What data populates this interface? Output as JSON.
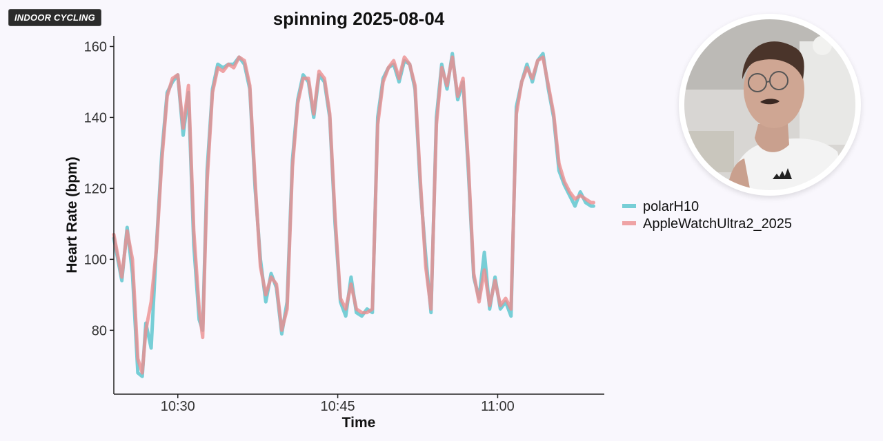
{
  "overlay": {
    "badge_label": "INDOOR CYCLING"
  },
  "colors": {
    "background": "#f9f7fd",
    "polar": "#56c3cc",
    "apple": "#ec8d8f",
    "overlap": "#7a8686",
    "axis": "#222222"
  },
  "chart_data": {
    "type": "line",
    "title": "spinning 2025-08-04",
    "xlabel": "Time",
    "ylabel": "Heart Rate (bpm)",
    "xlim": [
      "10:24",
      "11:10"
    ],
    "ylim": [
      62,
      163
    ],
    "x_ticks": [
      "10:30",
      "10:45",
      "11:00"
    ],
    "y_ticks": [
      80,
      100,
      120,
      140,
      160
    ],
    "grid": false,
    "legend_position": "right",
    "series": [
      {
        "name": "polarH10",
        "x": [
          "10:24:00",
          "10:24:45",
          "10:25:15",
          "10:25:45",
          "10:26:15",
          "10:26:40",
          "10:27:00",
          "10:27:30",
          "10:28:00",
          "10:28:30",
          "10:29:00",
          "10:29:30",
          "10:30:00",
          "10:30:30",
          "10:31:00",
          "10:31:30",
          "10:32:00",
          "10:32:20",
          "10:32:45",
          "10:33:15",
          "10:33:45",
          "10:34:15",
          "10:34:45",
          "10:35:15",
          "10:35:45",
          "10:36:15",
          "10:36:45",
          "10:37:15",
          "10:37:45",
          "10:38:15",
          "10:38:45",
          "10:39:15",
          "10:39:45",
          "10:40:15",
          "10:40:45",
          "10:41:15",
          "10:41:45",
          "10:42:15",
          "10:42:45",
          "10:43:15",
          "10:43:45",
          "10:44:15",
          "10:44:45",
          "10:45:15",
          "10:45:45",
          "10:46:15",
          "10:46:45",
          "10:47:15",
          "10:47:45",
          "10:48:15",
          "10:48:45",
          "10:49:15",
          "10:49:45",
          "10:50:15",
          "10:50:45",
          "10:51:15",
          "10:51:45",
          "10:52:15",
          "10:52:45",
          "10:53:15",
          "10:53:45",
          "10:54:15",
          "10:54:45",
          "10:55:15",
          "10:55:45",
          "10:56:15",
          "10:56:45",
          "10:57:15",
          "10:57:45",
          "10:58:15",
          "10:58:45",
          "10:59:15",
          "10:59:45",
          "11:00:15",
          "11:00:45",
          "11:01:15",
          "11:01:45",
          "11:02:15",
          "11:02:45",
          "11:03:15",
          "11:03:45",
          "11:04:15",
          "11:04:45",
          "11:05:15",
          "11:05:45",
          "11:06:15",
          "11:06:45",
          "11:07:15",
          "11:07:45",
          "11:08:15",
          "11:08:45",
          "11:09:00"
        ],
        "values": [
          106,
          94,
          109,
          96,
          68,
          67,
          82,
          75,
          104,
          130,
          147,
          150,
          152,
          135,
          147,
          104,
          83,
          80,
          125,
          148,
          155,
          154,
          155,
          155,
          157,
          155,
          148,
          120,
          100,
          88,
          96,
          92,
          79,
          88,
          128,
          145,
          152,
          150,
          140,
          152,
          150,
          140,
          110,
          88,
          84,
          95,
          85,
          84,
          86,
          85,
          140,
          151,
          154,
          155,
          150,
          156,
          155,
          148,
          120,
          101,
          85,
          140,
          155,
          148,
          158,
          145,
          150,
          125,
          95,
          89,
          102,
          86,
          95,
          86,
          88,
          84,
          143,
          150,
          155,
          150,
          156,
          158,
          148,
          140,
          125,
          121,
          118,
          115,
          119,
          116,
          115,
          115
        ]
      },
      {
        "name": "AppleWatchUltra2_2025",
        "x": [
          "10:24:00",
          "10:24:45",
          "10:25:15",
          "10:25:45",
          "10:26:15",
          "10:26:40",
          "10:27:00",
          "10:27:30",
          "10:28:00",
          "10:28:30",
          "10:29:00",
          "10:29:30",
          "10:30:00",
          "10:30:30",
          "10:31:00",
          "10:31:30",
          "10:32:00",
          "10:32:20",
          "10:32:45",
          "10:33:15",
          "10:33:45",
          "10:34:15",
          "10:34:45",
          "10:35:15",
          "10:35:45",
          "10:36:15",
          "10:36:45",
          "10:37:15",
          "10:37:45",
          "10:38:15",
          "10:38:45",
          "10:39:15",
          "10:39:45",
          "10:40:15",
          "10:40:45",
          "10:41:15",
          "10:41:45",
          "10:42:15",
          "10:42:45",
          "10:43:15",
          "10:43:45",
          "10:44:15",
          "10:44:45",
          "10:45:15",
          "10:45:45",
          "10:46:15",
          "10:46:45",
          "10:47:15",
          "10:47:45",
          "10:48:15",
          "10:48:45",
          "10:49:15",
          "10:49:45",
          "10:50:15",
          "10:50:45",
          "10:51:15",
          "10:51:45",
          "10:52:15",
          "10:52:45",
          "10:53:15",
          "10:53:45",
          "10:54:15",
          "10:54:45",
          "10:55:15",
          "10:55:45",
          "10:56:15",
          "10:56:45",
          "10:57:15",
          "10:57:45",
          "10:58:15",
          "10:58:45",
          "10:59:15",
          "10:59:45",
          "11:00:15",
          "11:00:45",
          "11:01:15",
          "11:01:45",
          "11:02:15",
          "11:02:45",
          "11:03:15",
          "11:03:45",
          "11:04:15",
          "11:04:45",
          "11:05:15",
          "11:05:45",
          "11:06:15",
          "11:06:45",
          "11:07:15",
          "11:07:45",
          "11:08:15",
          "11:08:45",
          "11:09:00"
        ],
        "values": [
          107,
          95,
          108,
          100,
          72,
          68,
          80,
          88,
          103,
          128,
          146,
          151,
          152,
          137,
          149,
          108,
          86,
          78,
          122,
          147,
          154,
          153,
          155,
          154,
          157,
          156,
          149,
          122,
          98,
          90,
          95,
          93,
          80,
          86,
          126,
          144,
          151,
          151,
          141,
          153,
          151,
          141,
          112,
          89,
          86,
          93,
          86,
          85,
          85,
          86,
          138,
          150,
          154,
          156,
          151,
          157,
          155,
          149,
          122,
          98,
          86,
          138,
          154,
          149,
          157,
          146,
          151,
          127,
          96,
          88,
          97,
          87,
          94,
          87,
          89,
          86,
          141,
          150,
          154,
          151,
          156,
          157,
          149,
          141,
          127,
          122,
          119,
          117,
          118,
          117,
          116,
          116
        ]
      }
    ]
  },
  "webcam": {
    "icon": "presenter-webcam"
  }
}
